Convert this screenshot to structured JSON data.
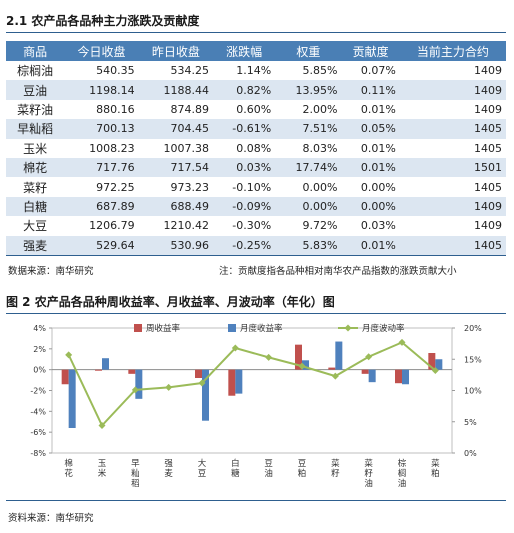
{
  "table_section": {
    "title": "2.1 农产品各品种主力涨跌及贡献度",
    "headers": [
      "商品",
      "今日收盘",
      "昨日收盘",
      "涨跌幅",
      "权重",
      "贡献度",
      "当前主力合约"
    ],
    "rows": [
      [
        "棕榈油",
        "540.35",
        "534.25",
        "1.14%",
        "5.85%",
        "0.07%",
        "1409"
      ],
      [
        "豆油",
        "1198.14",
        "1188.44",
        "0.82%",
        "13.95%",
        "0.11%",
        "1409"
      ],
      [
        "菜籽油",
        "880.16",
        "874.89",
        "0.60%",
        "2.00%",
        "0.01%",
        "1409"
      ],
      [
        "早籼稻",
        "700.13",
        "704.45",
        "-0.61%",
        "7.51%",
        "0.05%",
        "1405"
      ],
      [
        "玉米",
        "1008.23",
        "1007.38",
        "0.08%",
        "8.03%",
        "0.01%",
        "1405"
      ],
      [
        "棉花",
        "717.76",
        "717.54",
        "0.03%",
        "17.74%",
        "0.01%",
        "1501"
      ],
      [
        "菜籽",
        "972.25",
        "973.23",
        "-0.10%",
        "0.00%",
        "0.00%",
        "1405"
      ],
      [
        "白糖",
        "687.89",
        "688.49",
        "-0.09%",
        "0.00%",
        "0.00%",
        "1409"
      ],
      [
        "大豆",
        "1206.79",
        "1210.42",
        "-0.30%",
        "9.72%",
        "0.03%",
        "1409"
      ],
      [
        "强麦",
        "529.64",
        "530.96",
        "-0.25%",
        "5.83%",
        "0.01%",
        "1405"
      ]
    ],
    "source": "数据来源：南华研究",
    "footnote": "注：贡献度指各品种相对南华农产品指数的涨跌贡献大小"
  },
  "chart_section": {
    "title": "图 2 农产品各品种周收益率、月收益率、月波动率（年化）图",
    "source": "资料来源：南华研究"
  },
  "chart_data": {
    "type": "bar",
    "categories": [
      "棉花",
      "玉米",
      "早籼稻",
      "强麦",
      "大豆",
      "白糖",
      "豆油",
      "豆粕",
      "菜籽",
      "菜籽油",
      "棕榈油",
      "菜粕"
    ],
    "series": [
      {
        "name": "周收益率",
        "type": "bar",
        "axis": "left",
        "color": "#c0504d",
        "values": [
          -1.4,
          -0.1,
          -0.4,
          0.0,
          -0.8,
          -2.5,
          0.0,
          2.4,
          0.2,
          -0.4,
          -1.3,
          1.6
        ]
      },
      {
        "name": "月度收益率",
        "type": "bar",
        "axis": "left",
        "color": "#4f81bd",
        "values": [
          -5.6,
          1.1,
          -2.8,
          0.0,
          -4.9,
          -2.3,
          0.0,
          0.9,
          2.7,
          -1.2,
          -1.4,
          1.0
        ]
      },
      {
        "name": "月度波动率",
        "type": "line",
        "axis": "right",
        "color": "#9bbb59",
        "values": [
          15.7,
          4.4,
          10.1,
          10.5,
          11.2,
          16.8,
          15.3,
          13.9,
          12.3,
          15.4,
          17.7,
          13.2
        ]
      }
    ],
    "y_left": {
      "min": -8,
      "max": 4,
      "ticks": [
        "4%",
        "2%",
        "0%",
        "-2%",
        "-4%",
        "-6%",
        "-8%"
      ]
    },
    "y_right": {
      "min": 0,
      "max": 20,
      "ticks": [
        "20%",
        "15%",
        "10%",
        "5%",
        "0%"
      ]
    }
  }
}
